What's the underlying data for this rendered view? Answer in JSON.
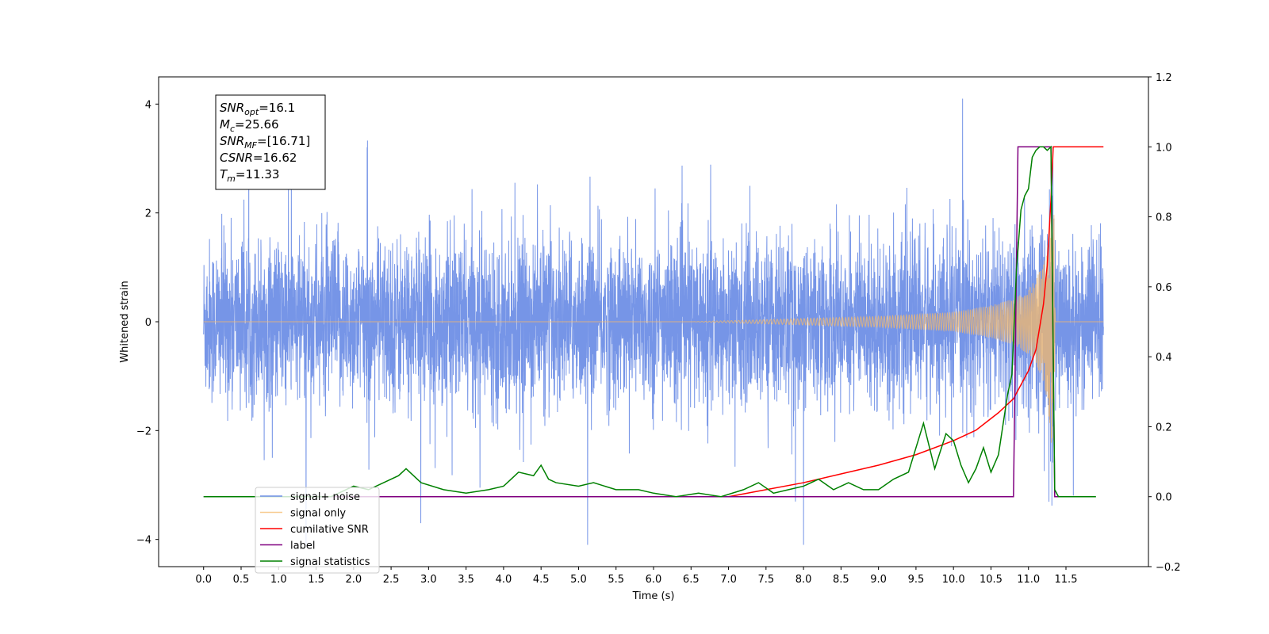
{
  "chart_data": {
    "type": "line",
    "xlabel": "Time (s)",
    "ylabel": "Whitened strain",
    "xlim": [
      -0.6,
      12.6
    ],
    "ylim": [
      -4.5,
      4.5
    ],
    "y2lim": [
      -0.2,
      1.2
    ],
    "x_ticks": [
      "0.0",
      "0.5",
      "1.0",
      "1.5",
      "2.0",
      "2.5",
      "3.0",
      "3.5",
      "4.0",
      "4.5",
      "5.0",
      "5.5",
      "6.0",
      "6.5",
      "7.0",
      "7.5",
      "8.0",
      "8.5",
      "9.0",
      "9.5",
      "10.0",
      "10.5",
      "11.0",
      "11.5"
    ],
    "y_ticks": [
      "4",
      "2",
      "0",
      "−2",
      "−4"
    ],
    "y2_ticks": [
      "1.2",
      "1.0",
      "0.8",
      "0.6",
      "0.4",
      "0.2",
      "0.0",
      "−0.2"
    ],
    "grid": false,
    "legend_position": "lower-left",
    "info_box": {
      "lines": [
        {
          "sym": "SNR",
          "sub": "opt",
          "value": "=16.1"
        },
        {
          "sym": "M",
          "sub": "c",
          "value": "=25.66"
        },
        {
          "sym": "SNR",
          "sub": "MF",
          "value": "=[16.71]"
        },
        {
          "sym": "CSNR",
          "sub": "",
          "value": "=16.62"
        },
        {
          "sym": "T",
          "sub": "m",
          "value": "=11.33"
        }
      ]
    },
    "series": [
      {
        "name": "signal+ noise",
        "axis": "left",
        "color": "#6f8fe6",
        "description_values": {
          "x_range": [
            0.0,
            12.0
          ],
          "typical_amplitude": 1.6,
          "peak_max": 4.1,
          "peak_min": -4.1
        }
      },
      {
        "name": "signal only",
        "axis": "left",
        "color": "#f5b96b",
        "x": [
          0.0,
          6.5,
          7.0,
          8.0,
          9.0,
          10.0,
          10.5,
          10.8,
          11.0,
          11.1,
          11.2,
          11.25,
          11.3,
          11.33,
          11.36,
          12.0
        ],
        "envelope": [
          0.0,
          0.0,
          0.02,
          0.06,
          0.1,
          0.18,
          0.3,
          0.42,
          0.6,
          0.78,
          1.1,
          1.5,
          2.2,
          3.0,
          0.0,
          0.0
        ]
      },
      {
        "name": "cumilative SNR",
        "axis": "right",
        "color": "#ff0000",
        "x": [
          7.0,
          7.5,
          8.0,
          8.5,
          9.0,
          9.5,
          10.0,
          10.3,
          10.6,
          10.8,
          11.0,
          11.1,
          11.2,
          11.25,
          11.3,
          11.33,
          11.5,
          12.0
        ],
        "y": [
          0.0,
          0.02,
          0.04,
          0.065,
          0.09,
          0.12,
          0.16,
          0.19,
          0.24,
          0.28,
          0.36,
          0.42,
          0.55,
          0.66,
          0.85,
          1.0,
          1.0,
          1.0
        ]
      },
      {
        "name": "label",
        "axis": "right",
        "color": "#800080",
        "x": [
          0.0,
          10.8,
          10.86,
          11.3,
          11.35,
          11.4
        ],
        "y": [
          0.0,
          0.0,
          1.0,
          1.0,
          0.0,
          0.0
        ]
      },
      {
        "name": "signal statistics",
        "axis": "right",
        "color": "#008000",
        "x": [
          0.0,
          1.7,
          2.0,
          2.2,
          2.4,
          2.6,
          2.7,
          2.9,
          3.2,
          3.5,
          3.8,
          4.0,
          4.1,
          4.2,
          4.4,
          4.5,
          4.6,
          4.7,
          5.0,
          5.2,
          5.5,
          5.8,
          6.0,
          6.3,
          6.6,
          6.9,
          7.2,
          7.4,
          7.6,
          7.8,
          8.0,
          8.2,
          8.4,
          8.6,
          8.8,
          9.0,
          9.2,
          9.4,
          9.6,
          9.75,
          9.9,
          10.0,
          10.1,
          10.2,
          10.3,
          10.4,
          10.5,
          10.6,
          10.72,
          10.78,
          10.84,
          10.9,
          10.95,
          11.0,
          11.05,
          11.1,
          11.15,
          11.2,
          11.25,
          11.3,
          11.35,
          11.4,
          11.45,
          11.5,
          11.9
        ],
        "y": [
          0.0,
          0.0,
          0.03,
          0.02,
          0.04,
          0.06,
          0.08,
          0.04,
          0.02,
          0.01,
          0.02,
          0.03,
          0.05,
          0.07,
          0.06,
          0.09,
          0.05,
          0.04,
          0.03,
          0.04,
          0.02,
          0.02,
          0.01,
          0.0,
          0.01,
          0.0,
          0.02,
          0.04,
          0.01,
          0.02,
          0.03,
          0.05,
          0.02,
          0.04,
          0.02,
          0.02,
          0.05,
          0.07,
          0.21,
          0.08,
          0.18,
          0.16,
          0.09,
          0.04,
          0.08,
          0.14,
          0.07,
          0.12,
          0.29,
          0.35,
          0.65,
          0.82,
          0.86,
          0.88,
          0.97,
          0.99,
          1.0,
          1.0,
          0.99,
          1.0,
          0.02,
          0.0,
          0.0,
          0.0,
          0.0
        ]
      }
    ]
  }
}
